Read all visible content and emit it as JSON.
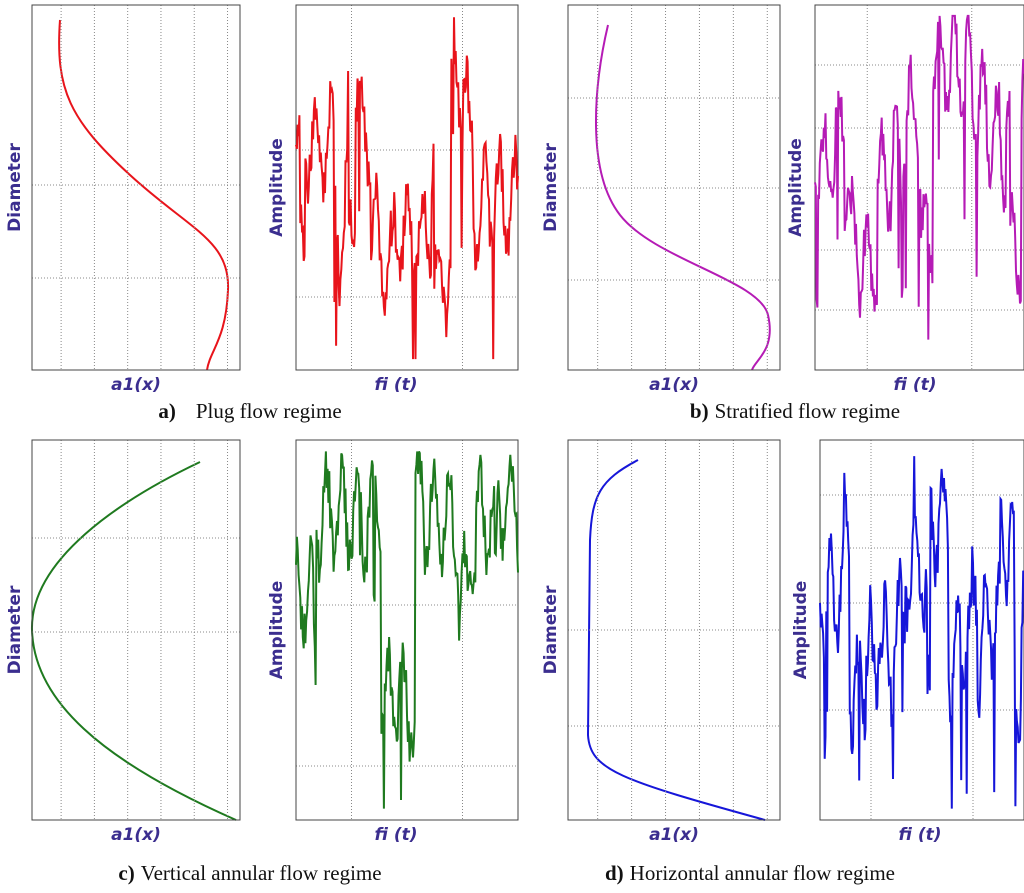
{
  "panels": [
    {
      "letter": "a)",
      "caption": "Plug flow regime",
      "left": {
        "y_label": "Diameter",
        "x_label": "a1(x)"
      },
      "right": {
        "y_label": "Amplitude",
        "x_label": "fi (t)"
      }
    },
    {
      "letter": "b)",
      "caption": "Stratified flow regime",
      "left": {
        "y_label": "Diameter",
        "x_label": "a1(x)"
      },
      "right": {
        "y_label": "Amplitude",
        "x_label": "fi (t)"
      }
    },
    {
      "letter": "c)",
      "caption": "Vertical annular flow regime",
      "left": {
        "y_label": "Diameter",
        "x_label": "a1(x)"
      },
      "right": {
        "y_label": "Amplitude",
        "x_label": "fi (t)"
      }
    },
    {
      "letter": "d)",
      "caption": "Horizontal annular  flow regime",
      "left": {
        "y_label": "Diameter",
        "x_label": "a1(x)"
      },
      "right": {
        "y_label": "Amplitude",
        "x_label": "fi (t)"
      }
    }
  ]
}
